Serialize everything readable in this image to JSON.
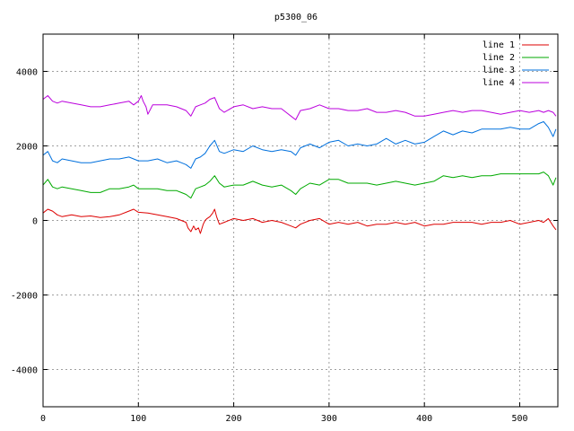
{
  "chart_data": {
    "type": "line",
    "title": "p5300_06",
    "xlabel": "",
    "ylabel": "",
    "xlim": [
      0,
      540
    ],
    "ylim": [
      -5000,
      5000
    ],
    "x_ticks": [
      0,
      100,
      200,
      300,
      400,
      500
    ],
    "y_ticks": [
      -4000,
      -2000,
      0,
      2000,
      4000
    ],
    "grid": true,
    "legend_position": "top-right",
    "series": [
      {
        "name": "line 1",
        "color": "#dd0000",
        "x": [
          0,
          5,
          10,
          15,
          20,
          30,
          40,
          50,
          60,
          70,
          80,
          90,
          95,
          100,
          110,
          120,
          130,
          140,
          145,
          150,
          152,
          155,
          158,
          160,
          163,
          165,
          168,
          170,
          172,
          175,
          178,
          180,
          182,
          185,
          190,
          200,
          210,
          220,
          230,
          240,
          250,
          260,
          265,
          270,
          280,
          290,
          300,
          310,
          320,
          330,
          340,
          350,
          360,
          370,
          380,
          390,
          400,
          410,
          420,
          430,
          440,
          450,
          460,
          470,
          480,
          490,
          500,
          510,
          520,
          525,
          530,
          535,
          538
        ],
        "y": [
          200,
          300,
          250,
          150,
          100,
          150,
          100,
          120,
          80,
          100,
          150,
          250,
          300,
          220,
          200,
          150,
          100,
          50,
          0,
          -50,
          -200,
          -300,
          -150,
          -250,
          -200,
          -350,
          -100,
          0,
          50,
          100,
          200,
          300,
          100,
          -100,
          -50,
          50,
          0,
          50,
          -50,
          0,
          -50,
          -150,
          -200,
          -100,
          0,
          50,
          -100,
          -50,
          -100,
          -50,
          -150,
          -100,
          -100,
          -50,
          -100,
          -50,
          -150,
          -100,
          -100,
          -50,
          -50,
          -50,
          -100,
          -50,
          -50,
          0,
          -100,
          -50,
          0,
          -50,
          50,
          -150,
          -250
        ]
      },
      {
        "name": "line 2",
        "color": "#00aa00",
        "x": [
          0,
          5,
          10,
          15,
          20,
          30,
          40,
          50,
          60,
          70,
          80,
          90,
          95,
          100,
          110,
          120,
          130,
          140,
          145,
          150,
          155,
          160,
          165,
          170,
          175,
          180,
          185,
          190,
          200,
          210,
          220,
          230,
          240,
          250,
          260,
          265,
          270,
          280,
          290,
          300,
          310,
          320,
          330,
          340,
          350,
          360,
          370,
          380,
          390,
          400,
          410,
          420,
          430,
          440,
          450,
          460,
          470,
          480,
          490,
          500,
          510,
          520,
          525,
          530,
          535,
          538
        ],
        "y": [
          950,
          1100,
          900,
          850,
          900,
          850,
          800,
          750,
          750,
          850,
          850,
          900,
          950,
          850,
          850,
          850,
          800,
          800,
          750,
          700,
          600,
          850,
          900,
          950,
          1050,
          1200,
          1000,
          900,
          950,
          950,
          1050,
          950,
          900,
          950,
          800,
          700,
          850,
          1000,
          950,
          1100,
          1100,
          1000,
          1000,
          1000,
          950,
          1000,
          1050,
          1000,
          950,
          1000,
          1050,
          1200,
          1150,
          1200,
          1150,
          1200,
          1200,
          1250,
          1250,
          1250,
          1250,
          1250,
          1300,
          1200,
          950,
          1150
        ]
      },
      {
        "name": "line 3",
        "color": "#0070dd",
        "x": [
          0,
          5,
          10,
          15,
          20,
          30,
          40,
          50,
          60,
          70,
          80,
          90,
          95,
          100,
          110,
          120,
          130,
          140,
          145,
          150,
          155,
          160,
          165,
          170,
          175,
          180,
          185,
          190,
          200,
          210,
          220,
          230,
          240,
          250,
          260,
          265,
          270,
          280,
          290,
          300,
          310,
          320,
          330,
          340,
          350,
          360,
          370,
          380,
          390,
          400,
          410,
          420,
          430,
          440,
          450,
          460,
          470,
          480,
          490,
          500,
          510,
          520,
          525,
          530,
          535,
          538
        ],
        "y": [
          1750,
          1850,
          1600,
          1550,
          1650,
          1600,
          1550,
          1550,
          1600,
          1650,
          1650,
          1700,
          1650,
          1600,
          1600,
          1650,
          1550,
          1600,
          1550,
          1500,
          1400,
          1650,
          1700,
          1800,
          2000,
          2150,
          1850,
          1800,
          1900,
          1850,
          2000,
          1900,
          1850,
          1900,
          1850,
          1750,
          1950,
          2050,
          1950,
          2100,
          2150,
          2000,
          2050,
          2000,
          2050,
          2200,
          2050,
          2150,
          2050,
          2100,
          2250,
          2400,
          2300,
          2400,
          2350,
          2450,
          2450,
          2450,
          2500,
          2450,
          2450,
          2600,
          2650,
          2500,
          2250,
          2450
        ]
      },
      {
        "name": "line 4",
        "color": "#bb00dd",
        "x": [
          0,
          5,
          10,
          15,
          20,
          30,
          40,
          50,
          60,
          70,
          80,
          90,
          95,
          100,
          103,
          105,
          108,
          110,
          113,
          115,
          120,
          130,
          140,
          150,
          155,
          160,
          165,
          170,
          175,
          180,
          185,
          190,
          200,
          210,
          220,
          230,
          240,
          250,
          260,
          265,
          270,
          280,
          290,
          300,
          310,
          320,
          330,
          340,
          350,
          360,
          370,
          380,
          390,
          400,
          410,
          420,
          430,
          440,
          450,
          460,
          470,
          480,
          490,
          500,
          510,
          520,
          525,
          530,
          535,
          538
        ],
        "y": [
          3250,
          3350,
          3200,
          3150,
          3200,
          3150,
          3100,
          3050,
          3050,
          3100,
          3150,
          3200,
          3100,
          3200,
          3350,
          3200,
          3050,
          2850,
          3000,
          3100,
          3100,
          3100,
          3050,
          2950,
          2800,
          3050,
          3100,
          3150,
          3250,
          3300,
          3000,
          2900,
          3050,
          3100,
          3000,
          3050,
          3000,
          3000,
          2800,
          2700,
          2950,
          3000,
          3100,
          3000,
          3000,
          2950,
          2950,
          3000,
          2900,
          2900,
          2950,
          2900,
          2800,
          2800,
          2850,
          2900,
          2950,
          2900,
          2950,
          2950,
          2900,
          2850,
          2900,
          2950,
          2900,
          2950,
          2900,
          2950,
          2900,
          2800
        ]
      }
    ]
  }
}
